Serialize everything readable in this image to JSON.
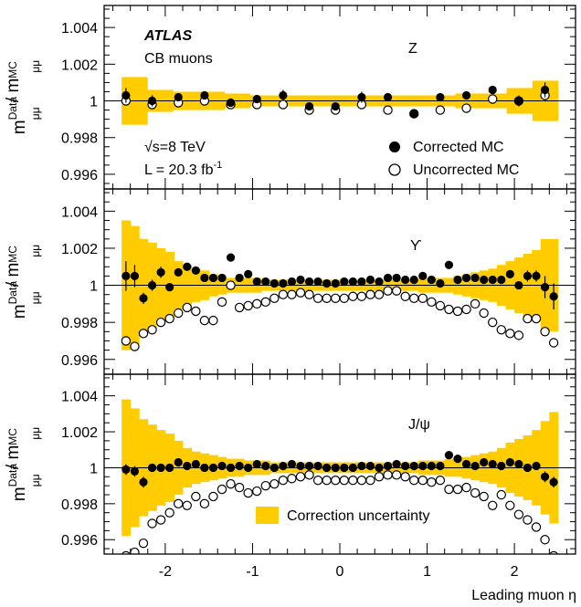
{
  "chart_data": {
    "type": "scatter",
    "experiment": "ATLAS",
    "muon_type": "CB muons",
    "energy_label": "√s=8 TeV",
    "lumi_label": "L = 20.3 fb",
    "lumi_exp": "-1",
    "xlabel": "Leading muon η",
    "ylabel": "m(Data) / m(MC) for μμ",
    "ylabel_parts": {
      "m": "m",
      "sub": "μμ",
      "sup_data": "Data",
      "sup_mc": "MC",
      "slash": " / "
    },
    "xlim": [
      -2.7,
      2.7
    ],
    "ylim": [
      0.9952,
      1.0052
    ],
    "x_ticks": [
      -2,
      -1,
      0,
      1,
      2
    ],
    "x_tick_labels": [
      "-2",
      "-1",
      "0",
      "1",
      "2"
    ],
    "y_ticks": [
      0.996,
      0.998,
      1,
      1.002,
      1.004
    ],
    "y_tick_labels": [
      "0.996",
      "0.998",
      "1",
      "1.002",
      "1.004"
    ],
    "eta_bins": [
      -2.5,
      -2.4,
      -2.3,
      -2.2,
      -2.1,
      -2.0,
      -1.9,
      -1.8,
      -1.7,
      -1.6,
      -1.5,
      -1.4,
      -1.3,
      -1.2,
      -1.1,
      -1.0,
      -0.9,
      -0.8,
      -0.7,
      -0.6,
      -0.5,
      -0.4,
      -0.3,
      -0.2,
      -0.1,
      0.0,
      0.1,
      0.2,
      0.3,
      0.4,
      0.5,
      0.6,
      0.7,
      0.8,
      0.9,
      1.0,
      1.1,
      1.2,
      1.3,
      1.4,
      1.5,
      1.6,
      1.7,
      1.8,
      1.9,
      2.0,
      2.1,
      2.2,
      2.3,
      2.4,
      2.5
    ],
    "legend_entries": [
      "Corrected MC",
      "Uncorrected MC",
      "Correction uncertainty"
    ],
    "panels": [
      {
        "label": "Z",
        "x": [
          -2.45,
          -2.15,
          -1.85,
          -1.55,
          -1.25,
          -0.95,
          -0.65,
          -0.35,
          -0.05,
          0.25,
          0.55,
          0.85,
          1.15,
          1.45,
          1.75,
          2.05,
          2.35
        ],
        "corrected": [
          1.0003,
          1.0,
          1.0002,
          1.0003,
          0.9999,
          1.0001,
          1.0003,
          0.9997,
          0.9997,
          1.0002,
          1.0002,
          0.9993,
          1.0002,
          1.0003,
          1.0006,
          1.0,
          1.0006
        ],
        "corrected_err": [
          0.0004,
          0.0003,
          0.0002,
          0.0002,
          0.0002,
          0.0002,
          0.0003,
          0.0002,
          0.0002,
          0.0003,
          0.0002,
          0.0002,
          0.0002,
          0.0002,
          0.0002,
          0.0003,
          0.0004
        ],
        "uncorrected": [
          1.0,
          0.9998,
          0.9999,
          1.0,
          0.9998,
          0.9998,
          0.9998,
          0.9995,
          0.9995,
          0.9998,
          0.9995,
          0.9993,
          0.9995,
          0.9996,
          1.0001,
          1.0,
          1.0003
        ],
        "uncertainty": [
          0.0013,
          0.0006,
          0.0005,
          0.0005,
          0.0004,
          0.0003,
          0.0003,
          0.0003,
          0.0003,
          0.0003,
          0.0003,
          0.0003,
          0.0003,
          0.0004,
          0.0004,
          0.0007,
          0.0011
        ]
      },
      {
        "label": "ϒ",
        "x": [
          -2.45,
          -2.35,
          -2.25,
          -2.15,
          -2.05,
          -1.95,
          -1.85,
          -1.75,
          -1.65,
          -1.55,
          -1.45,
          -1.35,
          -1.25,
          -1.15,
          -1.05,
          -0.95,
          -0.85,
          -0.75,
          -0.65,
          -0.55,
          -0.45,
          -0.35,
          -0.25,
          -0.15,
          -0.05,
          0.05,
          0.15,
          0.25,
          0.35,
          0.45,
          0.55,
          0.65,
          0.75,
          0.85,
          0.95,
          1.05,
          1.15,
          1.25,
          1.35,
          1.45,
          1.55,
          1.65,
          1.75,
          1.85,
          1.95,
          2.05,
          2.15,
          2.25,
          2.35,
          2.45
        ],
        "corrected": [
          1.0005,
          1.0005,
          0.9993,
          1.0,
          1.0007,
          0.9999,
          1.0007,
          1.001,
          1.0008,
          1.0004,
          1.0004,
          1.0004,
          1.0015,
          1.0004,
          1.0006,
          1.0002,
          1.0002,
          1.0001,
          1.0001,
          1.0002,
          1.0003,
          1.0002,
          1.0002,
          1.0001,
          1.0001,
          1.0002,
          1.0002,
          1.0002,
          1.0003,
          1.0002,
          1.0004,
          1.0004,
          1.0003,
          1.0003,
          1.0005,
          1.0003,
          1.0001,
          1.0011,
          1.0003,
          1.0004,
          1.0004,
          1.0003,
          1.0003,
          1.0003,
          1.0006,
          1.0,
          1.0005,
          1.0005,
          0.9999,
          0.9994
        ],
        "corrected_err": [
          0.0008,
          0.0006,
          0.0003,
          0.0003,
          0.0003,
          0.0002,
          0.0002,
          0.0002,
          0.0001,
          0.0001,
          0.0001,
          0.0001,
          0.0001,
          0.0001,
          0.0001,
          0.0001,
          0.0001,
          0.0001,
          0.0001,
          0.0001,
          0.0001,
          0.0001,
          0.0001,
          0.0001,
          0.0001,
          0.0001,
          0.0001,
          0.0001,
          0.0001,
          0.0001,
          0.0001,
          0.0001,
          0.0001,
          0.0001,
          0.0001,
          0.0001,
          0.0001,
          0.0001,
          0.0001,
          0.0001,
          0.0001,
          0.0001,
          0.0001,
          0.0002,
          0.0002,
          0.0002,
          0.0003,
          0.0003,
          0.0006,
          0.0007
        ],
        "uncorrected": [
          0.997,
          0.9967,
          0.9974,
          0.9976,
          0.998,
          0.9982,
          0.9985,
          0.9988,
          0.9986,
          0.9981,
          0.9981,
          0.9991,
          1.0,
          0.9988,
          0.9989,
          0.999,
          0.9991,
          0.9993,
          0.9995,
          0.9995,
          0.9996,
          0.9995,
          0.9993,
          0.9993,
          0.9993,
          0.9993,
          0.9994,
          0.9994,
          0.9995,
          0.9995,
          0.9997,
          0.9997,
          0.9994,
          0.9993,
          0.9993,
          0.9991,
          0.9989,
          0.9987,
          0.9986,
          0.9987,
          0.999,
          0.9985,
          0.998,
          0.9976,
          0.9974,
          0.9973,
          0.9982,
          0.9982,
          0.9975,
          0.9969
        ],
        "uncertainty": [
          0.0035,
          0.0032,
          0.0025,
          0.0023,
          0.002,
          0.0018,
          0.0013,
          0.0011,
          0.0009,
          0.0008,
          0.0006,
          0.0005,
          0.0004,
          0.0004,
          0.0004,
          0.0004,
          0.0003,
          0.0003,
          0.0003,
          0.0003,
          0.0003,
          0.0003,
          0.0003,
          0.0003,
          0.0003,
          0.0003,
          0.0003,
          0.0003,
          0.0003,
          0.0003,
          0.0003,
          0.0003,
          0.0003,
          0.0003,
          0.0004,
          0.0004,
          0.0004,
          0.0004,
          0.0005,
          0.0006,
          0.0007,
          0.0008,
          0.0009,
          0.0011,
          0.0013,
          0.0015,
          0.0017,
          0.0019,
          0.0025,
          0.0025
        ]
      },
      {
        "label": "J/ψ",
        "x": [
          -2.45,
          -2.35,
          -2.25,
          -2.15,
          -2.05,
          -1.95,
          -1.85,
          -1.75,
          -1.65,
          -1.55,
          -1.45,
          -1.35,
          -1.25,
          -1.15,
          -1.05,
          -0.95,
          -0.85,
          -0.75,
          -0.65,
          -0.55,
          -0.45,
          -0.35,
          -0.25,
          -0.15,
          -0.05,
          0.05,
          0.15,
          0.25,
          0.35,
          0.45,
          0.55,
          0.65,
          0.75,
          0.85,
          0.95,
          1.05,
          1.15,
          1.25,
          1.35,
          1.45,
          1.55,
          1.65,
          1.75,
          1.85,
          1.95,
          2.05,
          2.15,
          2.25,
          2.35,
          2.45
        ],
        "corrected": [
          0.9999,
          0.9998,
          0.9992,
          1.0,
          1.0,
          1.0,
          1.0003,
          1.0001,
          1.0002,
          1.0,
          1.0,
          1.0001,
          1.0,
          1.0001,
          1.0,
          1.0002,
          1.0001,
          1.0,
          1.0001,
          1.0002,
          1.0001,
          1.0001,
          1.0001,
          1.0,
          1.0,
          1.0,
          1.0,
          1.0001,
          1.0001,
          1.0,
          1.0001,
          1.0002,
          1.0001,
          1.0001,
          1.0001,
          1.0001,
          1.0001,
          1.0007,
          1.0005,
          1.0002,
          1.0001,
          1.0003,
          1.0002,
          1.0001,
          1.0003,
          1.0002,
          1.0,
          1.0001,
          0.9995,
          0.9992
        ],
        "corrected_err": [
          0.0003,
          0.0003,
          0.0003,
          0.0002,
          0.0002,
          0.0001,
          0.0001,
          0.0001,
          0.0001,
          0.0001,
          0.0001,
          0.0001,
          0.0001,
          0.0001,
          0.0001,
          0.0001,
          0.0001,
          0.0001,
          0.0001,
          0.0001,
          0.0001,
          0.0001,
          0.0001,
          0.0001,
          0.0001,
          0.0001,
          0.0001,
          0.0001,
          0.0001,
          0.0001,
          0.0001,
          0.0001,
          0.0001,
          0.0001,
          0.0001,
          0.0001,
          0.0001,
          0.0001,
          0.0001,
          0.0001,
          0.0001,
          0.0001,
          0.0001,
          0.0001,
          0.0001,
          0.0002,
          0.0002,
          0.0002,
          0.0003,
          0.0003
        ],
        "uncorrected": [
          0.9951,
          0.9953,
          0.9958,
          0.9969,
          0.9971,
          0.9975,
          0.998,
          0.9979,
          0.9984,
          0.998,
          0.9984,
          0.9988,
          0.9991,
          0.9989,
          0.9986,
          0.9987,
          0.999,
          0.9991,
          0.9993,
          0.9994,
          0.9995,
          0.9996,
          0.9993,
          0.9993,
          0.9993,
          0.9993,
          0.9993,
          0.9993,
          0.9993,
          0.9995,
          0.9996,
          0.9996,
          0.9995,
          0.9993,
          0.9993,
          0.9992,
          0.9993,
          0.9988,
          0.9988,
          0.9989,
          0.9986,
          0.9984,
          0.9979,
          0.9985,
          0.9979,
          0.9974,
          0.9971,
          0.9967,
          0.996,
          0.9951
        ],
        "uncertainty": [
          0.0038,
          0.0033,
          0.0027,
          0.0024,
          0.0021,
          0.0019,
          0.0015,
          0.0011,
          0.0009,
          0.0008,
          0.0007,
          0.0006,
          0.0005,
          0.0005,
          0.0004,
          0.0004,
          0.0004,
          0.0003,
          0.0003,
          0.0003,
          0.0003,
          0.0003,
          0.0003,
          0.0003,
          0.0003,
          0.0003,
          0.0003,
          0.0003,
          0.0003,
          0.0003,
          0.0003,
          0.0003,
          0.0003,
          0.0003,
          0.0004,
          0.0004,
          0.0004,
          0.0005,
          0.0005,
          0.0006,
          0.0007,
          0.0008,
          0.0009,
          0.0011,
          0.0014,
          0.0016,
          0.0018,
          0.0021,
          0.0026,
          0.0031
        ]
      }
    ],
    "colors": {
      "band": "#ffcc00",
      "markers": "#000000",
      "axes": "#000000"
    }
  }
}
